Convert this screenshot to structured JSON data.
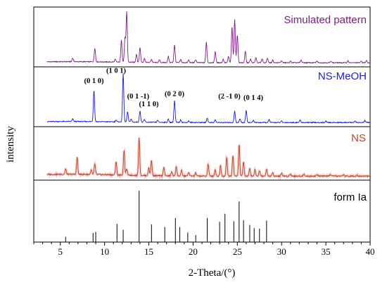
{
  "chart_data": {
    "type": "line",
    "xlabel": "2-Theta/(°)",
    "ylabel": "intensity",
    "xlim": [
      2,
      40
    ],
    "x_ticks": [
      "5",
      "10",
      "15",
      "20",
      "25",
      "30",
      "35",
      "40"
    ],
    "panels": [
      {
        "name": "Simulated pattern",
        "color": "#7b1f86",
        "peaks": [
          {
            "x": 6.4,
            "y": 0.07
          },
          {
            "x": 8.9,
            "y": 0.27
          },
          {
            "x": 11.2,
            "y": 0.05
          },
          {
            "x": 11.9,
            "y": 0.44
          },
          {
            "x": 12.3,
            "y": 0.46
          },
          {
            "x": 12.5,
            "y": 0.98
          },
          {
            "x": 13.6,
            "y": 0.16
          },
          {
            "x": 14.0,
            "y": 0.29
          },
          {
            "x": 14.5,
            "y": 0.08
          },
          {
            "x": 15.3,
            "y": 0.06
          },
          {
            "x": 16.2,
            "y": 0.05
          },
          {
            "x": 17.2,
            "y": 0.12
          },
          {
            "x": 17.9,
            "y": 0.35
          },
          {
            "x": 18.6,
            "y": 0.06
          },
          {
            "x": 19.5,
            "y": 0.05
          },
          {
            "x": 20.3,
            "y": 0.06
          },
          {
            "x": 21.5,
            "y": 0.4
          },
          {
            "x": 22.5,
            "y": 0.22
          },
          {
            "x": 23.4,
            "y": 0.07
          },
          {
            "x": 24.0,
            "y": 0.12
          },
          {
            "x": 24.4,
            "y": 0.7
          },
          {
            "x": 24.7,
            "y": 0.85
          },
          {
            "x": 25.0,
            "y": 0.55
          },
          {
            "x": 25.9,
            "y": 0.22
          },
          {
            "x": 26.5,
            "y": 0.07
          },
          {
            "x": 27.1,
            "y": 0.1
          },
          {
            "x": 27.8,
            "y": 0.08
          },
          {
            "x": 28.4,
            "y": 0.09
          },
          {
            "x": 29.0,
            "y": 0.05
          },
          {
            "x": 30.0,
            "y": 0.04
          },
          {
            "x": 31.0,
            "y": 0.03
          },
          {
            "x": 32.2,
            "y": 0.05
          },
          {
            "x": 34.0,
            "y": 0.03
          },
          {
            "x": 35.6,
            "y": 0.03
          },
          {
            "x": 37.5,
            "y": 0.04
          },
          {
            "x": 39.0,
            "y": 0.03
          },
          {
            "x": 39.6,
            "y": 0.04
          }
        ],
        "peak_labels": []
      },
      {
        "name": "NS-MeOH",
        "color": "#1c1cc8",
        "peaks": [
          {
            "x": 6.4,
            "y": 0.05
          },
          {
            "x": 8.8,
            "y": 0.62
          },
          {
            "x": 11.3,
            "y": 0.04
          },
          {
            "x": 12.1,
            "y": 0.95
          },
          {
            "x": 12.6,
            "y": 0.2
          },
          {
            "x": 13.0,
            "y": 0.06
          },
          {
            "x": 14.0,
            "y": 0.22
          },
          {
            "x": 14.5,
            "y": 0.05
          },
          {
            "x": 16.0,
            "y": 0.04
          },
          {
            "x": 17.2,
            "y": 0.06
          },
          {
            "x": 17.9,
            "y": 0.42
          },
          {
            "x": 18.6,
            "y": 0.05
          },
          {
            "x": 19.5,
            "y": 0.03
          },
          {
            "x": 21.6,
            "y": 0.09
          },
          {
            "x": 22.5,
            "y": 0.05
          },
          {
            "x": 24.7,
            "y": 0.22
          },
          {
            "x": 25.3,
            "y": 0.07
          },
          {
            "x": 26.0,
            "y": 0.24
          },
          {
            "x": 26.8,
            "y": 0.04
          },
          {
            "x": 28.6,
            "y": 0.06
          },
          {
            "x": 30.0,
            "y": 0.03
          },
          {
            "x": 32.1,
            "y": 0.05
          },
          {
            "x": 35.0,
            "y": 0.03
          },
          {
            "x": 38.3,
            "y": 0.03
          },
          {
            "x": 39.4,
            "y": 0.04
          }
        ],
        "peak_labels": [
          {
            "text": "(0 1 0)",
            "x": 8.8,
            "y": 0.78
          },
          {
            "text": "(1 0 1)",
            "x": 11.3,
            "y": 0.98
          },
          {
            "text": "(0 1 -1)",
            "x": 13.8,
            "y": 0.48
          },
          {
            "text": "(1 1 0)",
            "x": 15.0,
            "y": 0.33
          },
          {
            "text": "(0 2 0)",
            "x": 17.9,
            "y": 0.53
          },
          {
            "text": "(2 -1 0)",
            "x": 24.1,
            "y": 0.48
          },
          {
            "text": "(0 1 4)",
            "x": 26.8,
            "y": 0.45
          }
        ]
      },
      {
        "name": "NS",
        "color": "#b5482a",
        "peaks": [
          {
            "x": 5.6,
            "y": 0.12
          },
          {
            "x": 6.9,
            "y": 0.38
          },
          {
            "x": 8.5,
            "y": 0.1
          },
          {
            "x": 8.9,
            "y": 0.24
          },
          {
            "x": 11.3,
            "y": 0.3
          },
          {
            "x": 12.2,
            "y": 0.55
          },
          {
            "x": 12.5,
            "y": 0.14
          },
          {
            "x": 13.9,
            "y": 0.85
          },
          {
            "x": 15.0,
            "y": 0.18
          },
          {
            "x": 15.3,
            "y": 0.34
          },
          {
            "x": 16.7,
            "y": 0.2
          },
          {
            "x": 17.6,
            "y": 0.1
          },
          {
            "x": 18.1,
            "y": 0.22
          },
          {
            "x": 18.7,
            "y": 0.12
          },
          {
            "x": 19.5,
            "y": 0.08
          },
          {
            "x": 20.3,
            "y": 0.07
          },
          {
            "x": 21.7,
            "y": 0.27
          },
          {
            "x": 22.5,
            "y": 0.14
          },
          {
            "x": 23.1,
            "y": 0.24
          },
          {
            "x": 23.8,
            "y": 0.42
          },
          {
            "x": 24.5,
            "y": 0.46
          },
          {
            "x": 25.2,
            "y": 0.7
          },
          {
            "x": 25.7,
            "y": 0.33
          },
          {
            "x": 26.4,
            "y": 0.18
          },
          {
            "x": 27.0,
            "y": 0.14
          },
          {
            "x": 27.5,
            "y": 0.12
          },
          {
            "x": 28.3,
            "y": 0.16
          },
          {
            "x": 29.0,
            "y": 0.08
          },
          {
            "x": 30.0,
            "y": 0.07
          },
          {
            "x": 31.0,
            "y": 0.05
          },
          {
            "x": 32.5,
            "y": 0.04
          },
          {
            "x": 34.0,
            "y": 0.03
          },
          {
            "x": 35.5,
            "y": 0.03
          },
          {
            "x": 37.0,
            "y": 0.03
          },
          {
            "x": 38.5,
            "y": 0.03
          }
        ],
        "peak_labels": []
      },
      {
        "name": "form Ia",
        "color": "#000000",
        "sticks": [
          {
            "x": 5.6,
            "y": 0.1
          },
          {
            "x": 8.7,
            "y": 0.17
          },
          {
            "x": 9.0,
            "y": 0.19
          },
          {
            "x": 11.4,
            "y": 0.34
          },
          {
            "x": 12.1,
            "y": 0.23
          },
          {
            "x": 13.9,
            "y": 0.96
          },
          {
            "x": 15.3,
            "y": 0.33
          },
          {
            "x": 16.8,
            "y": 0.28
          },
          {
            "x": 18.0,
            "y": 0.45
          },
          {
            "x": 18.5,
            "y": 0.28
          },
          {
            "x": 19.4,
            "y": 0.18
          },
          {
            "x": 20.3,
            "y": 0.13
          },
          {
            "x": 21.6,
            "y": 0.45
          },
          {
            "x": 23.0,
            "y": 0.38
          },
          {
            "x": 23.6,
            "y": 0.53
          },
          {
            "x": 24.6,
            "y": 0.39
          },
          {
            "x": 25.2,
            "y": 0.76
          },
          {
            "x": 25.7,
            "y": 0.41
          },
          {
            "x": 26.4,
            "y": 0.32
          },
          {
            "x": 26.9,
            "y": 0.26
          },
          {
            "x": 27.5,
            "y": 0.25
          },
          {
            "x": 28.3,
            "y": 0.4
          }
        ],
        "peak_labels": []
      }
    ]
  }
}
